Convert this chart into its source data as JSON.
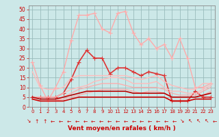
{
  "xlabel": "Vent moyen/en rafales ( km/h )",
  "xlim": [
    -0.5,
    23.5
  ],
  "ylim": [
    0,
    52
  ],
  "yticks": [
    0,
    5,
    10,
    15,
    20,
    25,
    30,
    35,
    40,
    45,
    50
  ],
  "xticks": [
    0,
    1,
    2,
    3,
    4,
    5,
    6,
    7,
    8,
    9,
    10,
    11,
    12,
    13,
    14,
    15,
    16,
    17,
    18,
    19,
    20,
    21,
    22,
    23
  ],
  "bg_color": "#cce8e8",
  "grid_color": "#99bbbb",
  "series": [
    {
      "name": "rafales_light",
      "color": "#ffaaaa",
      "linewidth": 1.0,
      "marker": "+",
      "markersize": 4,
      "markeredge": 0.8,
      "values": [
        23,
        11,
        3,
        10,
        18,
        34,
        47,
        47,
        48,
        40,
        38,
        48,
        49,
        38,
        32,
        35,
        30,
        32,
        25,
        35,
        25,
        10,
        10,
        12
      ]
    },
    {
      "name": "vent_max_dark",
      "color": "#dd3333",
      "linewidth": 1.2,
      "marker": "+",
      "markersize": 4,
      "markeredge": 0.8,
      "values": [
        5,
        5,
        5,
        5,
        7,
        14,
        23,
        29,
        25,
        25,
        17,
        20,
        20,
        18,
        16,
        18,
        17,
        16,
        3,
        3,
        3,
        8,
        5,
        5
      ]
    },
    {
      "name": "rafales_mean_high",
      "color": "#ffbbbb",
      "linewidth": 1.0,
      "marker": null,
      "markersize": 0,
      "values": [
        18,
        10,
        9,
        9,
        10,
        15,
        16,
        16,
        16,
        16,
        16,
        16,
        16,
        15,
        14,
        15,
        16,
        13,
        11,
        10,
        9,
        9,
        12,
        12
      ]
    },
    {
      "name": "rafales_mean_low",
      "color": "#ffbbbb",
      "linewidth": 1.0,
      "marker": null,
      "markersize": 0,
      "values": [
        5,
        5,
        5,
        5,
        7,
        9,
        10,
        11,
        13,
        14,
        15,
        15,
        14,
        12,
        12,
        12,
        13,
        10,
        8,
        8,
        7,
        7,
        9,
        11
      ]
    },
    {
      "name": "vent_mean_high",
      "color": "#ffaaaa",
      "linewidth": 0.9,
      "marker": null,
      "markersize": 0,
      "values": [
        4,
        3,
        3,
        3,
        5,
        7,
        9,
        10,
        11,
        12,
        12,
        12,
        11,
        10,
        10,
        10,
        10,
        9,
        7,
        6,
        6,
        6,
        8,
        10
      ]
    },
    {
      "name": "vent_mean_low",
      "color": "#ffaaaa",
      "linewidth": 0.9,
      "marker": null,
      "markersize": 0,
      "values": [
        4,
        3,
        3,
        3,
        4,
        5,
        6,
        7,
        8,
        9,
        9,
        9,
        9,
        8,
        7,
        8,
        8,
        7,
        5,
        5,
        5,
        5,
        6,
        8
      ]
    },
    {
      "name": "vent_min_dark",
      "color": "#cc0000",
      "linewidth": 1.2,
      "marker": null,
      "markersize": 0,
      "values": [
        4,
        3,
        3,
        3,
        3,
        4,
        5,
        5,
        5,
        5,
        5,
        5,
        5,
        5,
        5,
        5,
        5,
        5,
        3,
        3,
        3,
        4,
        4,
        4
      ]
    },
    {
      "name": "rafales_min_dark",
      "color": "#bb0000",
      "linewidth": 1.2,
      "marker": null,
      "markersize": 0,
      "values": [
        5,
        4,
        4,
        4,
        5,
        6,
        7,
        8,
        8,
        8,
        8,
        8,
        8,
        7,
        7,
        7,
        7,
        7,
        5,
        5,
        5,
        5,
        6,
        7
      ]
    }
  ],
  "arrows": [
    "↘",
    "↑",
    "↑",
    "←",
    "←",
    "←",
    "←",
    "←",
    "←",
    "←",
    "←",
    "←",
    "←",
    "←",
    "←",
    "←",
    "←",
    "←",
    "←",
    "↘",
    "↖",
    "↖",
    "↖",
    "←"
  ]
}
